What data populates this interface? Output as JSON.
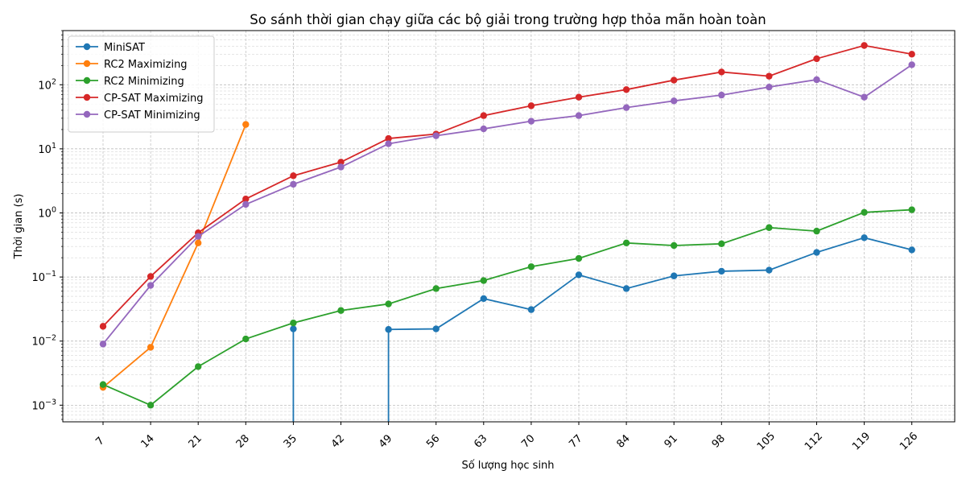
{
  "chart_data": {
    "type": "line",
    "title": "So sánh thời gian chạy giữa các bộ giải trong trường hợp thỏa mãn hoàn toàn",
    "xlabel": "Số lượng học sinh",
    "ylabel": "Thời gian (s)",
    "yscale": "log",
    "ylim": [
      0.00055,
      700
    ],
    "grid": true,
    "legend_position": "upper-left",
    "x": [
      7,
      14,
      21,
      28,
      35,
      42,
      49,
      56,
      63,
      70,
      77,
      84,
      91,
      98,
      105,
      112,
      119,
      126
    ],
    "x_tick_labels": [
      "7",
      "14",
      "21",
      "28",
      "35",
      "42",
      "49",
      "56",
      "63",
      "70",
      "77",
      "84",
      "91",
      "98",
      "105",
      "112",
      "119",
      "126"
    ],
    "y_ticks": [
      {
        "value": 0.001,
        "base": "10",
        "exp": "−3"
      },
      {
        "value": 0.01,
        "base": "10",
        "exp": "−2"
      },
      {
        "value": 0.1,
        "base": "10",
        "exp": "−1"
      },
      {
        "value": 1,
        "base": "10",
        "exp": "0"
      },
      {
        "value": 10,
        "base": "10",
        "exp": "1"
      },
      {
        "value": 100,
        "base": "10",
        "exp": "2"
      }
    ],
    "series": [
      {
        "name": "MiniSAT",
        "color": "#1f77b4",
        "values": [
          null,
          null,
          null,
          null,
          0.0155,
          null,
          0.0152,
          0.0155,
          0.046,
          0.031,
          0.108,
          0.066,
          0.104,
          0.123,
          0.128,
          0.242,
          0.41,
          0.265
        ],
        "drops_to_zero_at": [
          35,
          49
        ]
      },
      {
        "name": "RC2 Maximizing",
        "color": "#ff7f0e",
        "values": [
          0.0019,
          0.008,
          0.34,
          24,
          null,
          null,
          null,
          null,
          null,
          null,
          null,
          null,
          null,
          null,
          null,
          null,
          null,
          null
        ]
      },
      {
        "name": "RC2 Minimizing",
        "color": "#2ca02c",
        "values": [
          0.0021,
          0.001,
          0.004,
          0.0108,
          0.0192,
          0.03,
          0.038,
          0.066,
          0.088,
          0.145,
          0.195,
          0.34,
          0.31,
          0.33,
          0.59,
          0.52,
          1.02,
          1.12
        ]
      },
      {
        "name": "CP-SAT Maximizing",
        "color": "#d62728",
        "values": [
          0.017,
          0.102,
          0.49,
          1.65,
          3.8,
          6.2,
          14.5,
          17,
          33,
          47,
          64,
          84,
          118,
          158,
          136,
          255,
          410,
          300
        ]
      },
      {
        "name": "CP-SAT Minimizing",
        "color": "#9467bd",
        "values": [
          0.009,
          0.074,
          0.43,
          1.36,
          2.8,
          5.2,
          12,
          16,
          20.5,
          27,
          33,
          44,
          56,
          69,
          92,
          120,
          64,
          205
        ]
      }
    ]
  }
}
